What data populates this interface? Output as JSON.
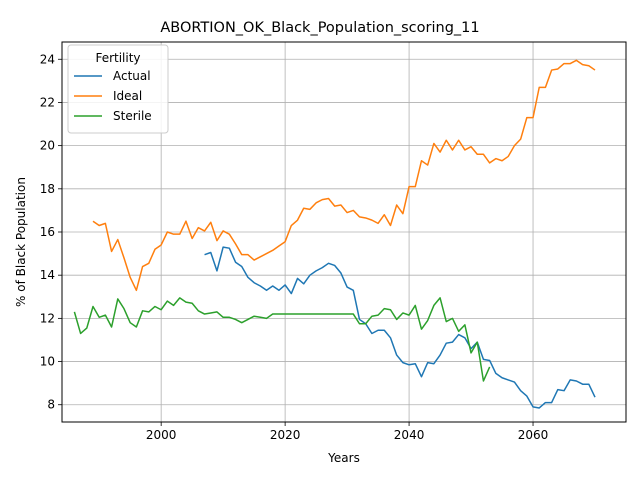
{
  "chart_data": {
    "type": "line",
    "title": "ABORTION_OK_Black_Population_scoring_11",
    "xlabel": "Years",
    "ylabel": "% of Black Population",
    "xlim": [
      1984,
      2075
    ],
    "ylim": [
      7.2,
      24.8
    ],
    "x_ticks": [
      2000,
      2020,
      2040,
      2060
    ],
    "y_ticks": [
      8,
      10,
      12,
      14,
      16,
      18,
      20,
      22,
      24
    ],
    "grid": true,
    "legend": {
      "title": "Fertility",
      "placement": "top-left"
    },
    "series": [
      {
        "name": "Actual",
        "color": "#1f77b4",
        "points": [
          [
            2007,
            14.95
          ],
          [
            2008,
            15.05
          ],
          [
            2009,
            14.2
          ],
          [
            2010,
            15.3
          ],
          [
            2011,
            15.25
          ],
          [
            2012,
            14.6
          ],
          [
            2013,
            14.4
          ],
          [
            2014,
            13.9
          ],
          [
            2015,
            13.65
          ],
          [
            2016,
            13.5
          ],
          [
            2017,
            13.3
          ],
          [
            2018,
            13.5
          ],
          [
            2019,
            13.3
          ],
          [
            2020,
            13.55
          ],
          [
            2021,
            13.15
          ],
          [
            2022,
            13.85
          ],
          [
            2023,
            13.6
          ],
          [
            2024,
            14.0
          ],
          [
            2025,
            14.2
          ],
          [
            2026,
            14.35
          ],
          [
            2027,
            14.55
          ],
          [
            2028,
            14.45
          ],
          [
            2029,
            14.1
          ],
          [
            2030,
            13.45
          ],
          [
            2031,
            13.3
          ],
          [
            2032,
            11.95
          ],
          [
            2033,
            11.75
          ],
          [
            2034,
            11.3
          ],
          [
            2035,
            11.45
          ],
          [
            2036,
            11.45
          ],
          [
            2037,
            11.1
          ],
          [
            2038,
            10.3
          ],
          [
            2039,
            9.95
          ],
          [
            2040,
            9.85
          ],
          [
            2041,
            9.9
          ],
          [
            2042,
            9.3
          ],
          [
            2043,
            9.95
          ],
          [
            2044,
            9.9
          ],
          [
            2045,
            10.3
          ],
          [
            2046,
            10.85
          ],
          [
            2047,
            10.9
          ],
          [
            2048,
            11.25
          ],
          [
            2049,
            11.1
          ],
          [
            2050,
            10.6
          ],
          [
            2051,
            10.9
          ],
          [
            2052,
            10.1
          ],
          [
            2053,
            10.05
          ],
          [
            2054,
            9.45
          ],
          [
            2055,
            9.25
          ],
          [
            2056,
            9.15
          ],
          [
            2057,
            9.05
          ],
          [
            2058,
            8.65
          ],
          [
            2059,
            8.4
          ],
          [
            2060,
            7.9
          ],
          [
            2061,
            7.85
          ],
          [
            2062,
            8.1
          ],
          [
            2063,
            8.1
          ],
          [
            2064,
            8.7
          ],
          [
            2065,
            8.65
          ],
          [
            2066,
            9.15
          ],
          [
            2067,
            9.1
          ],
          [
            2068,
            8.95
          ],
          [
            2069,
            8.95
          ],
          [
            2070,
            8.35
          ]
        ]
      },
      {
        "name": "Ideal",
        "color": "#ff7f0e",
        "points": [
          [
            1989,
            16.5
          ],
          [
            1990,
            16.3
          ],
          [
            1991,
            16.4
          ],
          [
            1992,
            15.1
          ],
          [
            1993,
            15.65
          ],
          [
            1994,
            14.8
          ],
          [
            1995,
            13.9
          ],
          [
            1996,
            13.3
          ],
          [
            1997,
            14.4
          ],
          [
            1998,
            14.55
          ],
          [
            1999,
            15.2
          ],
          [
            2000,
            15.4
          ],
          [
            2001,
            16.0
          ],
          [
            2002,
            15.9
          ],
          [
            2003,
            15.9
          ],
          [
            2004,
            16.5
          ],
          [
            2005,
            15.7
          ],
          [
            2006,
            16.2
          ],
          [
            2007,
            16.05
          ],
          [
            2008,
            16.45
          ],
          [
            2009,
            15.6
          ],
          [
            2010,
            16.05
          ],
          [
            2011,
            15.9
          ],
          [
            2012,
            15.45
          ],
          [
            2013,
            14.95
          ],
          [
            2014,
            14.95
          ],
          [
            2015,
            14.7
          ],
          [
            2016,
            14.85
          ],
          [
            2017,
            15.0
          ],
          [
            2018,
            15.15
          ],
          [
            2019,
            15.35
          ],
          [
            2020,
            15.55
          ],
          [
            2021,
            16.3
          ],
          [
            2022,
            16.55
          ],
          [
            2023,
            17.1
          ],
          [
            2024,
            17.05
          ],
          [
            2025,
            17.35
          ],
          [
            2026,
            17.5
          ],
          [
            2027,
            17.55
          ],
          [
            2028,
            17.2
          ],
          [
            2029,
            17.25
          ],
          [
            2030,
            16.9
          ],
          [
            2031,
            17.0
          ],
          [
            2032,
            16.7
          ],
          [
            2033,
            16.65
          ],
          [
            2034,
            16.55
          ],
          [
            2035,
            16.4
          ],
          [
            2036,
            16.8
          ],
          [
            2037,
            16.3
          ],
          [
            2038,
            17.25
          ],
          [
            2039,
            16.85
          ],
          [
            2040,
            18.1
          ],
          [
            2041,
            18.1
          ],
          [
            2042,
            19.3
          ],
          [
            2043,
            19.1
          ],
          [
            2044,
            20.1
          ],
          [
            2045,
            19.7
          ],
          [
            2046,
            20.25
          ],
          [
            2047,
            19.8
          ],
          [
            2048,
            20.25
          ],
          [
            2049,
            19.8
          ],
          [
            2050,
            19.95
          ],
          [
            2051,
            19.6
          ],
          [
            2052,
            19.6
          ],
          [
            2053,
            19.2
          ],
          [
            2054,
            19.4
          ],
          [
            2055,
            19.3
          ],
          [
            2056,
            19.5
          ],
          [
            2057,
            20.0
          ],
          [
            2058,
            20.3
          ],
          [
            2059,
            21.3
          ],
          [
            2060,
            21.3
          ],
          [
            2061,
            22.7
          ],
          [
            2062,
            22.7
          ],
          [
            2063,
            23.5
          ],
          [
            2064,
            23.55
          ],
          [
            2065,
            23.8
          ],
          [
            2066,
            23.8
          ],
          [
            2067,
            23.95
          ],
          [
            2068,
            23.75
          ],
          [
            2069,
            23.7
          ],
          [
            2070,
            23.5
          ]
        ]
      },
      {
        "name": "Sterile",
        "color": "#2ca02c",
        "points": [
          [
            1986,
            12.3
          ],
          [
            1987,
            11.3
          ],
          [
            1988,
            11.55
          ],
          [
            1989,
            12.55
          ],
          [
            1990,
            12.05
          ],
          [
            1991,
            12.15
          ],
          [
            1992,
            11.6
          ],
          [
            1993,
            12.9
          ],
          [
            1994,
            12.45
          ],
          [
            1995,
            11.8
          ],
          [
            1996,
            11.6
          ],
          [
            1997,
            12.35
          ],
          [
            1998,
            12.3
          ],
          [
            1999,
            12.55
          ],
          [
            2000,
            12.4
          ],
          [
            2001,
            12.8
          ],
          [
            2002,
            12.6
          ],
          [
            2003,
            12.95
          ],
          [
            2004,
            12.75
          ],
          [
            2005,
            12.7
          ],
          [
            2006,
            12.35
          ],
          [
            2007,
            12.2
          ],
          [
            2008,
            12.25
          ],
          [
            2009,
            12.3
          ],
          [
            2010,
            12.05
          ],
          [
            2011,
            12.05
          ],
          [
            2012,
            11.95
          ],
          [
            2013,
            11.8
          ],
          [
            2014,
            11.95
          ],
          [
            2015,
            12.1
          ],
          [
            2016,
            12.05
          ],
          [
            2017,
            12.0
          ],
          [
            2018,
            12.2
          ],
          [
            2019,
            12.2
          ],
          [
            2020,
            12.2
          ],
          [
            2021,
            12.2
          ],
          [
            2022,
            12.2
          ],
          [
            2023,
            12.2
          ],
          [
            2024,
            12.2
          ],
          [
            2025,
            12.2
          ],
          [
            2026,
            12.2
          ],
          [
            2027,
            12.2
          ],
          [
            2028,
            12.2
          ],
          [
            2029,
            12.2
          ],
          [
            2030,
            12.2
          ],
          [
            2031,
            12.2
          ],
          [
            2032,
            11.75
          ],
          [
            2033,
            11.75
          ],
          [
            2034,
            12.1
          ],
          [
            2035,
            12.15
          ],
          [
            2036,
            12.45
          ],
          [
            2037,
            12.4
          ],
          [
            2038,
            11.95
          ],
          [
            2039,
            12.25
          ],
          [
            2040,
            12.15
          ],
          [
            2041,
            12.6
          ],
          [
            2042,
            11.5
          ],
          [
            2043,
            11.9
          ],
          [
            2044,
            12.6
          ],
          [
            2045,
            12.95
          ],
          [
            2046,
            11.85
          ],
          [
            2047,
            12.0
          ],
          [
            2048,
            11.4
          ],
          [
            2049,
            11.7
          ],
          [
            2050,
            10.4
          ],
          [
            2051,
            10.9
          ],
          [
            2052,
            9.1
          ],
          [
            2053,
            9.75
          ]
        ]
      }
    ]
  }
}
